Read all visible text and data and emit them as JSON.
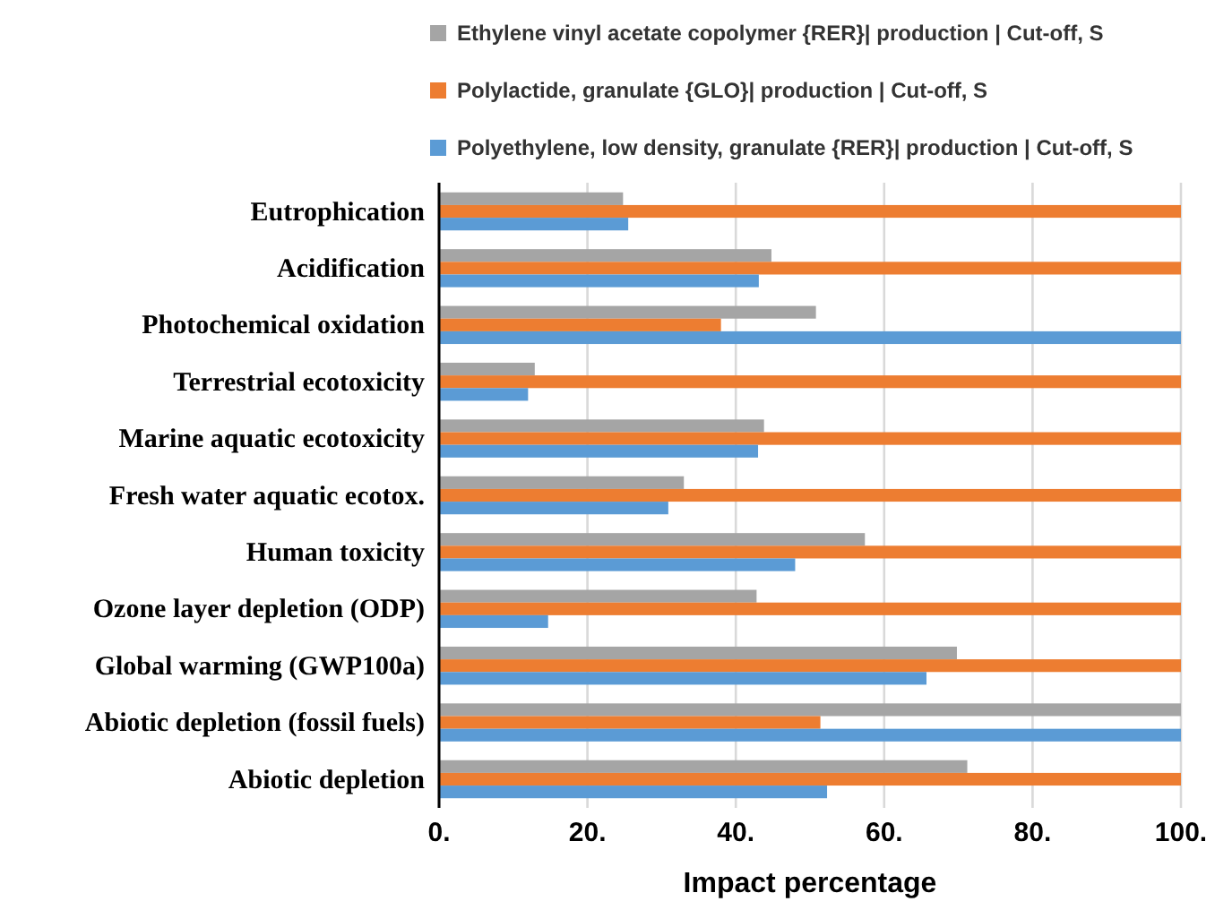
{
  "chart_data": {
    "type": "bar",
    "orientation": "horizontal",
    "xlabel": "Impact percentage",
    "categories": [
      "Eutrophication",
      "Acidification",
      "Photochemical oxidation",
      "Terrestrial ecotoxicity",
      "Marine aquatic ecotoxicity",
      "Fresh water aquatic ecotox.",
      "Human toxicity",
      "Ozone layer depletion (ODP)",
      "Global warming (GWP100a)",
      "Abiotic depletion (fossil fuels)",
      "Abiotic depletion"
    ],
    "series": [
      {
        "name": "Ethylene vinyl acetate copolymer {RER}| production | Cut-off, S",
        "color": "#a5a5a5",
        "values": [
          24.8,
          44.8,
          50.8,
          12.9,
          43.8,
          33.0,
          57.4,
          42.8,
          69.8,
          100,
          71.2
        ]
      },
      {
        "name": "Polylactide, granulate {GLO}| production | Cut-off, S",
        "color": "#ed7d31",
        "values": [
          100,
          100,
          38.0,
          100,
          100,
          100,
          100,
          100,
          100,
          51.4,
          100
        ]
      },
      {
        "name": "Polyethylene, low density, granulate {RER}| production | Cut-off, S",
        "color": "#5b9bd5",
        "values": [
          25.5,
          43.1,
          100,
          12.0,
          43.0,
          30.9,
          48.0,
          14.7,
          65.7,
          100,
          52.3
        ]
      }
    ],
    "xlim": [
      0,
      100
    ],
    "xticks": [
      {
        "value": 0,
        "label": "0."
      },
      {
        "value": 20,
        "label": "20."
      },
      {
        "value": 40,
        "label": "40."
      },
      {
        "value": 60,
        "label": "60."
      },
      {
        "value": 80,
        "label": "80."
      },
      {
        "value": 100,
        "label": "100."
      }
    ],
    "grid": "x",
    "legend": "top"
  }
}
